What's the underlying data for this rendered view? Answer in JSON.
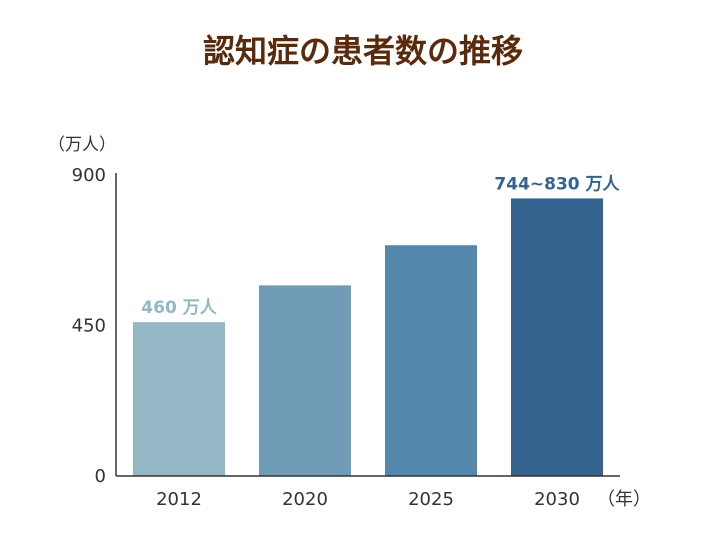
{
  "chart_data": {
    "type": "bar",
    "title": "認知症の患者数の推移",
    "ylabel": "（万人）",
    "xlabel": "（年）",
    "categories": [
      "2012",
      "2020",
      "2025",
      "2030"
    ],
    "values": [
      460,
      570,
      690,
      830
    ],
    "ylim": [
      0,
      900
    ],
    "yticks": [
      "0",
      "450",
      "900"
    ],
    "grid": false,
    "bar_colors": [
      "#94b7c5",
      "#6f9db7",
      "#5487ae",
      "#35638f"
    ],
    "data_labels": [
      {
        "category": "2012",
        "text": "460 万人",
        "color": "#94b7c5"
      },
      {
        "category": "2030",
        "text": "744~830 万人",
        "color": "#35638f"
      }
    ]
  },
  "colors": {
    "title": "#5a2a0c",
    "axis": "#333333"
  }
}
